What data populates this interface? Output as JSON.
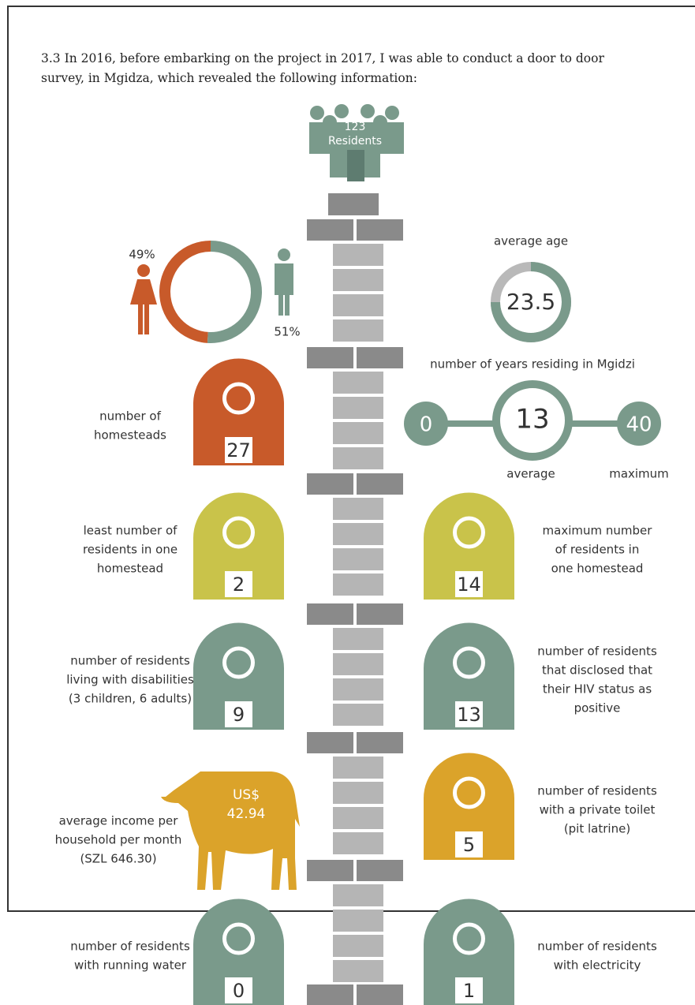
{
  "intro": [
    "3.3 In 2016, before embarking on the project in 2017, I was able to conduct a door to door",
    "survey, in Mgidza, which revealed the following information:"
  ],
  "residents": {
    "count": "123",
    "label": "Residents"
  },
  "gender": {
    "female": {
      "value": 49,
      "label": "49%"
    },
    "male": {
      "value": 51,
      "label": "51%"
    }
  },
  "average_age": {
    "label": "average age",
    "value": "23.5"
  },
  "years_residing": {
    "title": "number of years residing in Mgidzi",
    "min": "0",
    "average": "13",
    "max": "40",
    "average_label": "average",
    "max_label": "maximum"
  },
  "income": {
    "currency": "US$",
    "value": "42.94",
    "label": [
      "average income per",
      "household per month",
      "(SZL 646.30)"
    ]
  },
  "stats": [
    {
      "label": [
        "number of",
        "homesteads"
      ],
      "value": "27"
    },
    {
      "label": [
        "least number of",
        "residents in one",
        "homestead"
      ],
      "value": "2"
    },
    {
      "label": [
        "maximum number",
        "of residents in",
        "one homestead"
      ],
      "value": "14"
    },
    {
      "label": [
        "number of residents",
        "living with disabilities",
        "(3 children, 6 adults)"
      ],
      "value": "9"
    },
    {
      "label": [
        "number of residents",
        "that disclosed that",
        "their  HIV status as",
        "positive"
      ],
      "value": "13"
    },
    {
      "label": [
        "number of residents",
        "with a private toilet",
        "(pit latrine)"
      ],
      "value": "5"
    },
    {
      "label": [
        "number of residents",
        "with running water"
      ],
      "value": "0"
    },
    {
      "label": [
        "number of residents",
        "with electricity"
      ],
      "value": "1"
    }
  ]
}
